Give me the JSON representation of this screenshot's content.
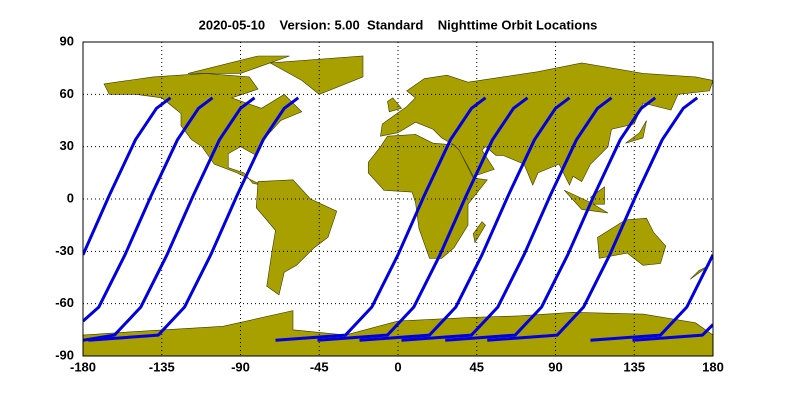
{
  "chart_data": {
    "type": "map",
    "title": "2020-05-10    Version: 5.00  Standard    Nighttime Orbit Locations",
    "xlim": [
      -180,
      180
    ],
    "ylim": [
      -90,
      90
    ],
    "xticks": [
      -180,
      -135,
      -90,
      -45,
      0,
      45,
      90,
      135,
      180
    ],
    "yticks": [
      -90,
      -60,
      -30,
      0,
      30,
      60,
      90
    ],
    "grid": true,
    "color": "#0000e0",
    "series": [
      {
        "x": [
          -180,
          -165,
          -150,
          -138,
          -130
        ],
        "y": [
          -32,
          2,
          34,
          52,
          58
        ]
      },
      {
        "x": [
          -180,
          -171,
          -156,
          -141,
          -126,
          -114,
          -106
        ],
        "y": [
          -70,
          -62,
          -32,
          2,
          34,
          52,
          58
        ]
      },
      {
        "x": [
          -180,
          -162,
          -147,
          -132,
          -117,
          -102,
          -90,
          -82
        ],
        "y": [
          -81,
          -78,
          -62,
          -32,
          2,
          34,
          52,
          58
        ]
      },
      {
        "x": [
          -177,
          -137,
          -122,
          -107,
          -92,
          -77,
          -65,
          -57
        ],
        "y": [
          -81,
          -78,
          -62,
          -32,
          2,
          34,
          52,
          58
        ]
      },
      {
        "x": [
          -70,
          -30,
          -15,
          0,
          15,
          30,
          42,
          50
        ],
        "y": [
          -81,
          -78,
          -62,
          -32,
          2,
          34,
          52,
          58
        ]
      },
      {
        "x": [
          -46,
          -6,
          9,
          24,
          39,
          54,
          66,
          74
        ],
        "y": [
          -81,
          -78,
          -62,
          -32,
          2,
          34,
          52,
          58
        ]
      },
      {
        "x": [
          -22,
          18,
          33,
          48,
          63,
          78,
          90,
          98
        ],
        "y": [
          -81,
          -78,
          -62,
          -32,
          2,
          34,
          52,
          58
        ]
      },
      {
        "x": [
          2,
          42,
          57,
          72,
          87,
          102,
          114,
          122
        ],
        "y": [
          -81,
          -78,
          -62,
          -32,
          2,
          34,
          52,
          58
        ]
      },
      {
        "x": [
          27,
          67,
          82,
          97,
          112,
          127,
          139,
          147
        ],
        "y": [
          -81,
          -78,
          -62,
          -32,
          2,
          34,
          52,
          58
        ]
      },
      {
        "x": [
          51,
          91,
          106,
          121,
          136,
          151,
          163,
          171
        ],
        "y": [
          -81,
          -78,
          -62,
          -32,
          2,
          34,
          52,
          58
        ]
      },
      {
        "x": [
          110,
          150,
          165,
          180
        ],
        "y": [
          -81,
          -78,
          -62,
          -32
        ]
      },
      {
        "x": [
          134,
          174,
          180
        ],
        "y": [
          -81,
          -78,
          -72
        ]
      }
    ]
  }
}
